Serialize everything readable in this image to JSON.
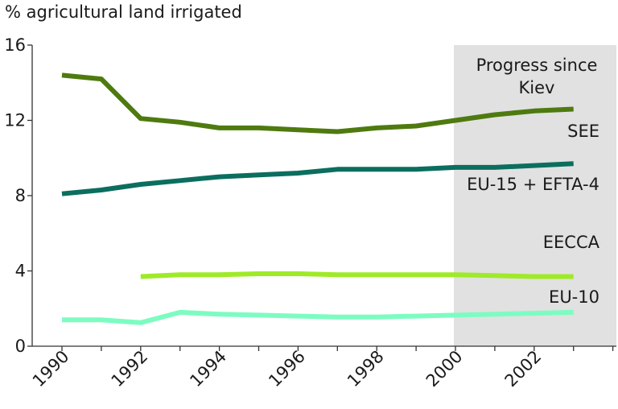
{
  "chart_data": {
    "type": "line",
    "title": "",
    "xlabel": "",
    "ylabel": "% agricultural land irrigated",
    "xlim": [
      1990,
      2003
    ],
    "ylim": [
      0,
      16
    ],
    "x_ticks": [
      "1990",
      "1992",
      "1994",
      "1996",
      "1998",
      "2000",
      "2002"
    ],
    "y_ticks": [
      "0",
      "4",
      "8",
      "12",
      "16"
    ],
    "grid": false,
    "shaded_region": {
      "x_start": 2000,
      "x_end": 2003,
      "label_line1": "Progress since",
      "label_line2": "Kiev",
      "color": "#e1e1e1"
    },
    "series": [
      {
        "name": "SEE",
        "color": "#4e7a0f",
        "points": [
          [
            1990,
            14.4
          ],
          [
            1991,
            14.2
          ],
          [
            1992,
            12.1
          ],
          [
            1993,
            11.9
          ],
          [
            1994,
            11.6
          ],
          [
            1995,
            11.6
          ],
          [
            1996,
            11.5
          ],
          [
            1997,
            11.4
          ],
          [
            1998,
            11.6
          ],
          [
            1999,
            11.7
          ],
          [
            2000,
            12.0
          ],
          [
            2001,
            12.3
          ],
          [
            2002,
            12.5
          ],
          [
            2003,
            12.6
          ]
        ]
      },
      {
        "name": "EU-15 + EFTA-4",
        "color": "#0b6e5f",
        "points": [
          [
            1990,
            8.1
          ],
          [
            1991,
            8.3
          ],
          [
            1992,
            8.6
          ],
          [
            1993,
            8.8
          ],
          [
            1994,
            9.0
          ],
          [
            1995,
            9.1
          ],
          [
            1996,
            9.2
          ],
          [
            1997,
            9.4
          ],
          [
            1998,
            9.4
          ],
          [
            1999,
            9.4
          ],
          [
            2000,
            9.5
          ],
          [
            2001,
            9.5
          ],
          [
            2002,
            9.6
          ],
          [
            2003,
            9.7
          ]
        ]
      },
      {
        "name": "EECCA",
        "color": "#9fea28",
        "points": [
          [
            1992,
            3.7
          ],
          [
            1993,
            3.8
          ],
          [
            1994,
            3.8
          ],
          [
            1995,
            3.85
          ],
          [
            1996,
            3.85
          ],
          [
            1997,
            3.8
          ],
          [
            1998,
            3.8
          ],
          [
            1999,
            3.8
          ],
          [
            2000,
            3.8
          ],
          [
            2001,
            3.75
          ],
          [
            2002,
            3.7
          ],
          [
            2003,
            3.7
          ]
        ]
      },
      {
        "name": "EU-10",
        "color": "#7dfcc2",
        "points": [
          [
            1990,
            1.4
          ],
          [
            1991,
            1.4
          ],
          [
            1992,
            1.25
          ],
          [
            1993,
            1.8
          ],
          [
            1994,
            1.7
          ],
          [
            1995,
            1.65
          ],
          [
            1996,
            1.6
          ],
          [
            1997,
            1.55
          ],
          [
            1998,
            1.55
          ],
          [
            1999,
            1.6
          ],
          [
            2000,
            1.65
          ],
          [
            2001,
            1.7
          ],
          [
            2002,
            1.75
          ],
          [
            2003,
            1.8
          ]
        ]
      }
    ]
  }
}
